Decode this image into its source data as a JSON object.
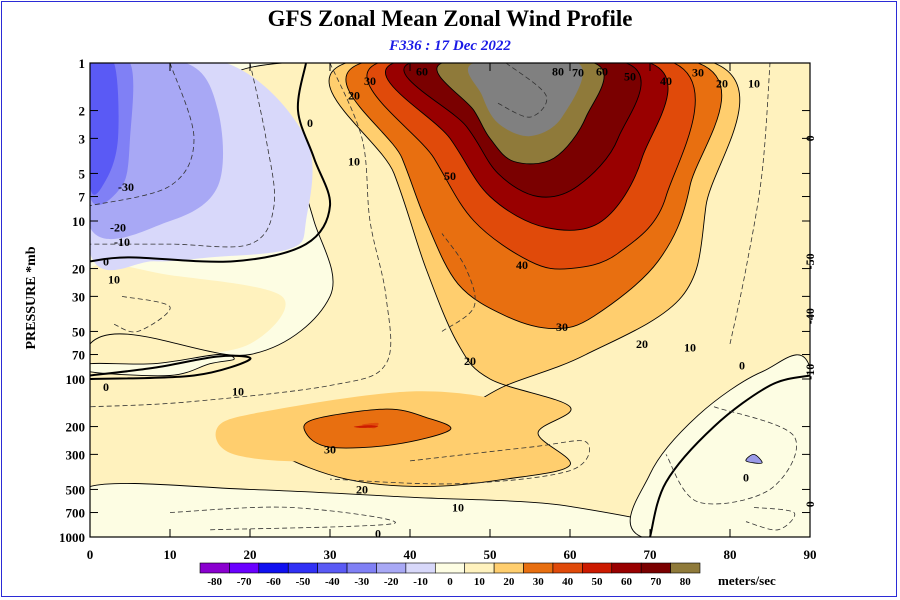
{
  "title": "GFS Zonal Mean Zonal Wind Profile",
  "subtitle": "F336 : 17 Dec 2022",
  "chart_data": {
    "type": "heatmap",
    "title": "GFS Zonal Mean Zonal Wind Profile",
    "subtitle": "F336 : 17 Dec 2022",
    "xlabel": "",
    "ylabel": "PRESSURE *mb",
    "xlim": [
      0,
      90
    ],
    "ylim": [
      1000,
      1
    ],
    "yscale": "log",
    "x_ticks": [
      0,
      10,
      20,
      30,
      40,
      50,
      60,
      70,
      80,
      90
    ],
    "y_ticks": [
      1,
      2,
      3,
      5,
      7,
      10,
      20,
      30,
      50,
      70,
      100,
      200,
      300,
      500,
      700,
      1000
    ],
    "colorbar": {
      "levels": [
        -80,
        -70,
        -60,
        -50,
        -40,
        -30,
        -20,
        -10,
        0,
        10,
        20,
        30,
        40,
        50,
        60,
        70,
        80
      ],
      "unit": "meters/sec",
      "colors": [
        "#8a00cf",
        "#6a00ff",
        "#1010f0",
        "#3030f5",
        "#5a5af5",
        "#8080f5",
        "#a8a8f5",
        "#d8d8fa",
        "#fdfde3",
        "#fff2be",
        "#ffce6e",
        "#e86f10",
        "#e04a0a",
        "#cc1a00",
        "#990000",
        "#7a0000",
        "#8f7a3a"
      ]
    },
    "contour_labels": [
      {
        "value": "60",
        "x": 41.5,
        "y": 1.13
      },
      {
        "value": "80",
        "x": 58.5,
        "y": 1.13
      },
      {
        "value": "70",
        "x": 61,
        "y": 1.15
      },
      {
        "value": "60",
        "x": 64,
        "y": 1.13
      },
      {
        "value": "50",
        "x": 67.5,
        "y": 1.22
      },
      {
        "value": "30",
        "x": 35,
        "y": 1.3
      },
      {
        "value": "20",
        "x": 33,
        "y": 1.6
      },
      {
        "value": "40",
        "x": 72,
        "y": 1.3
      },
      {
        "value": "30",
        "x": 76,
        "y": 1.15
      },
      {
        "value": "20",
        "x": 79,
        "y": 1.35
      },
      {
        "value": "10",
        "x": 83,
        "y": 1.35
      },
      {
        "value": "0",
        "x": 27.5,
        "y": 2.4
      },
      {
        "value": "10",
        "x": 33,
        "y": 4.2
      },
      {
        "value": "50",
        "x": 45,
        "y": 5.2
      },
      {
        "value": "-30",
        "x": 4.5,
        "y": 6.1
      },
      {
        "value": "-20",
        "x": 3.5,
        "y": 11
      },
      {
        "value": "-10",
        "x": 4,
        "y": 13.6
      },
      {
        "value": "0",
        "x": 2,
        "y": 18
      },
      {
        "value": "10",
        "x": 3,
        "y": 23.5
      },
      {
        "value": "40",
        "x": 54,
        "y": 19
      },
      {
        "value": "30",
        "x": 59,
        "y": 47
      },
      {
        "value": "20",
        "x": 69,
        "y": 60
      },
      {
        "value": "10",
        "x": 75,
        "y": 63
      },
      {
        "value": "20",
        "x": 47.5,
        "y": 77
      },
      {
        "value": "0",
        "x": 81.5,
        "y": 82
      },
      {
        "value": "0",
        "x": 2,
        "y": 112
      },
      {
        "value": "10",
        "x": 18.5,
        "y": 120
      },
      {
        "value": "30",
        "x": 30,
        "y": 280
      },
      {
        "value": "20",
        "x": 34,
        "y": 500
      },
      {
        "value": "10",
        "x": 46,
        "y": 650
      },
      {
        "value": "0",
        "x": 36,
        "y": 950
      },
      {
        "value": "0",
        "x": 82,
        "y": 420
      },
      {
        "value": "0",
        "x": 90,
        "y": 3
      },
      {
        "value": "-50",
        "x": 90,
        "y": 18
      },
      {
        "value": "-40",
        "x": 90,
        "y": 40
      },
      {
        "value": "-10",
        "x": 90,
        "y": 90
      },
      {
        "value": "0",
        "x": 90,
        "y": 620
      }
    ]
  }
}
